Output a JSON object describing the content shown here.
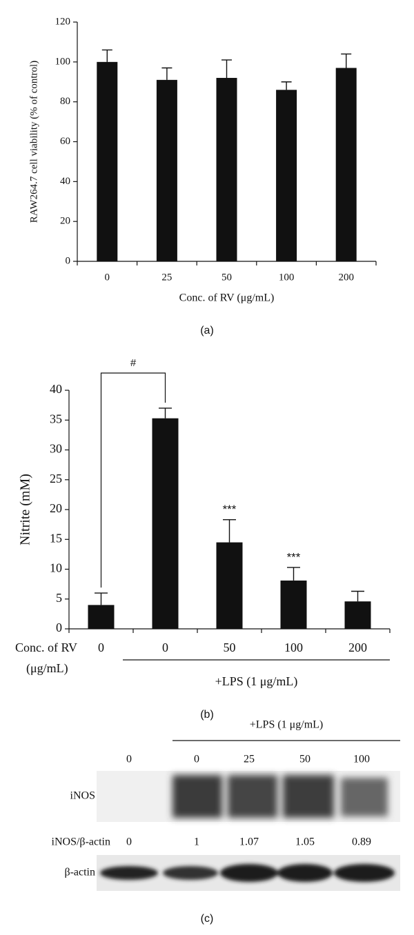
{
  "chart_data": [
    {
      "type": "bar",
      "panel_label": "(a)",
      "ylabel": "RAW264.7 cell viability (% of control)",
      "xlabel": "Conc. of RV (μg/mL)",
      "categories": [
        "0",
        "25",
        "50",
        "100",
        "200"
      ],
      "values": [
        100,
        91,
        92,
        86,
        97
      ],
      "errors": [
        6,
        6,
        9,
        4,
        7
      ],
      "color": "#111111",
      "ylim": [
        0,
        120
      ],
      "yticks": [
        0,
        20,
        40,
        60,
        80,
        100,
        120
      ]
    },
    {
      "type": "bar",
      "panel_label": "(b)",
      "ylabel": "Nitrite (mM)",
      "xlabel_lines": [
        "Conc. of RV",
        "(μg/mL)"
      ],
      "group_label": "+LPS (1 μg/mL)",
      "categories": [
        "0",
        "0",
        "50",
        "100",
        "200"
      ],
      "values": [
        4,
        35.3,
        14.5,
        8.1,
        4.6
      ],
      "errors": [
        2,
        1.7,
        3.8,
        2.2,
        1.7
      ],
      "annotations": [
        "#",
        "***",
        "***"
      ],
      "color": "#111111",
      "ylim": [
        0,
        40
      ],
      "yticks": [
        0,
        5,
        10,
        15,
        20,
        25,
        30,
        35,
        40
      ]
    }
  ],
  "blot": {
    "panel_label": "(c)",
    "group_label": "+LPS (1 μg/mL)",
    "lanes": [
      "0",
      "0",
      "25",
      "50",
      "100"
    ],
    "rows": [
      "iNOS",
      "iNOS/β-actin",
      "β-actin"
    ],
    "ratios": [
      0,
      1,
      1.07,
      1.05,
      0.89
    ]
  }
}
